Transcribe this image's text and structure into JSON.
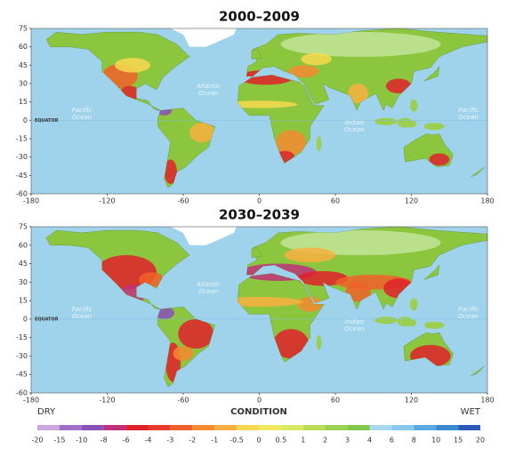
{
  "maps": [
    {
      "title": "2000–2009"
    },
    {
      "title": "2030–2039"
    }
  ],
  "lon_ticks": [
    -180,
    -120,
    -60,
    0,
    60,
    120,
    180
  ],
  "lat_ticks": [
    75,
    60,
    45,
    30,
    15,
    0,
    -15,
    -30,
    -45,
    -60
  ],
  "equator_label": "EQUATOR",
  "ocean_labels": [
    "Pacific Ocean",
    "Atlantic Ocean",
    "Indian Ocean",
    "Pacific Ocean"
  ],
  "legend": {
    "dry": "DRY",
    "title": "CONDITION",
    "wet": "WET",
    "ticks": [
      -20,
      -15,
      -10,
      -8,
      -6,
      -4,
      -3,
      -2,
      -1,
      -0.5,
      0,
      0.5,
      1,
      2,
      3,
      4,
      6,
      8,
      10,
      15,
      20
    ],
    "colors": [
      "#c9a6e0",
      "#a070c8",
      "#8a4fb8",
      "#c0307a",
      "#e0202a",
      "#e83a2a",
      "#f0602a",
      "#f58a30",
      "#f8b040",
      "#f8d850",
      "#f0e860",
      "#d8e860",
      "#b8dc58",
      "#98d050",
      "#80c848",
      "#a8d8f0",
      "#88c8ec",
      "#5aa8e0",
      "#3a88d0",
      "#2a5ab8"
    ]
  }
}
